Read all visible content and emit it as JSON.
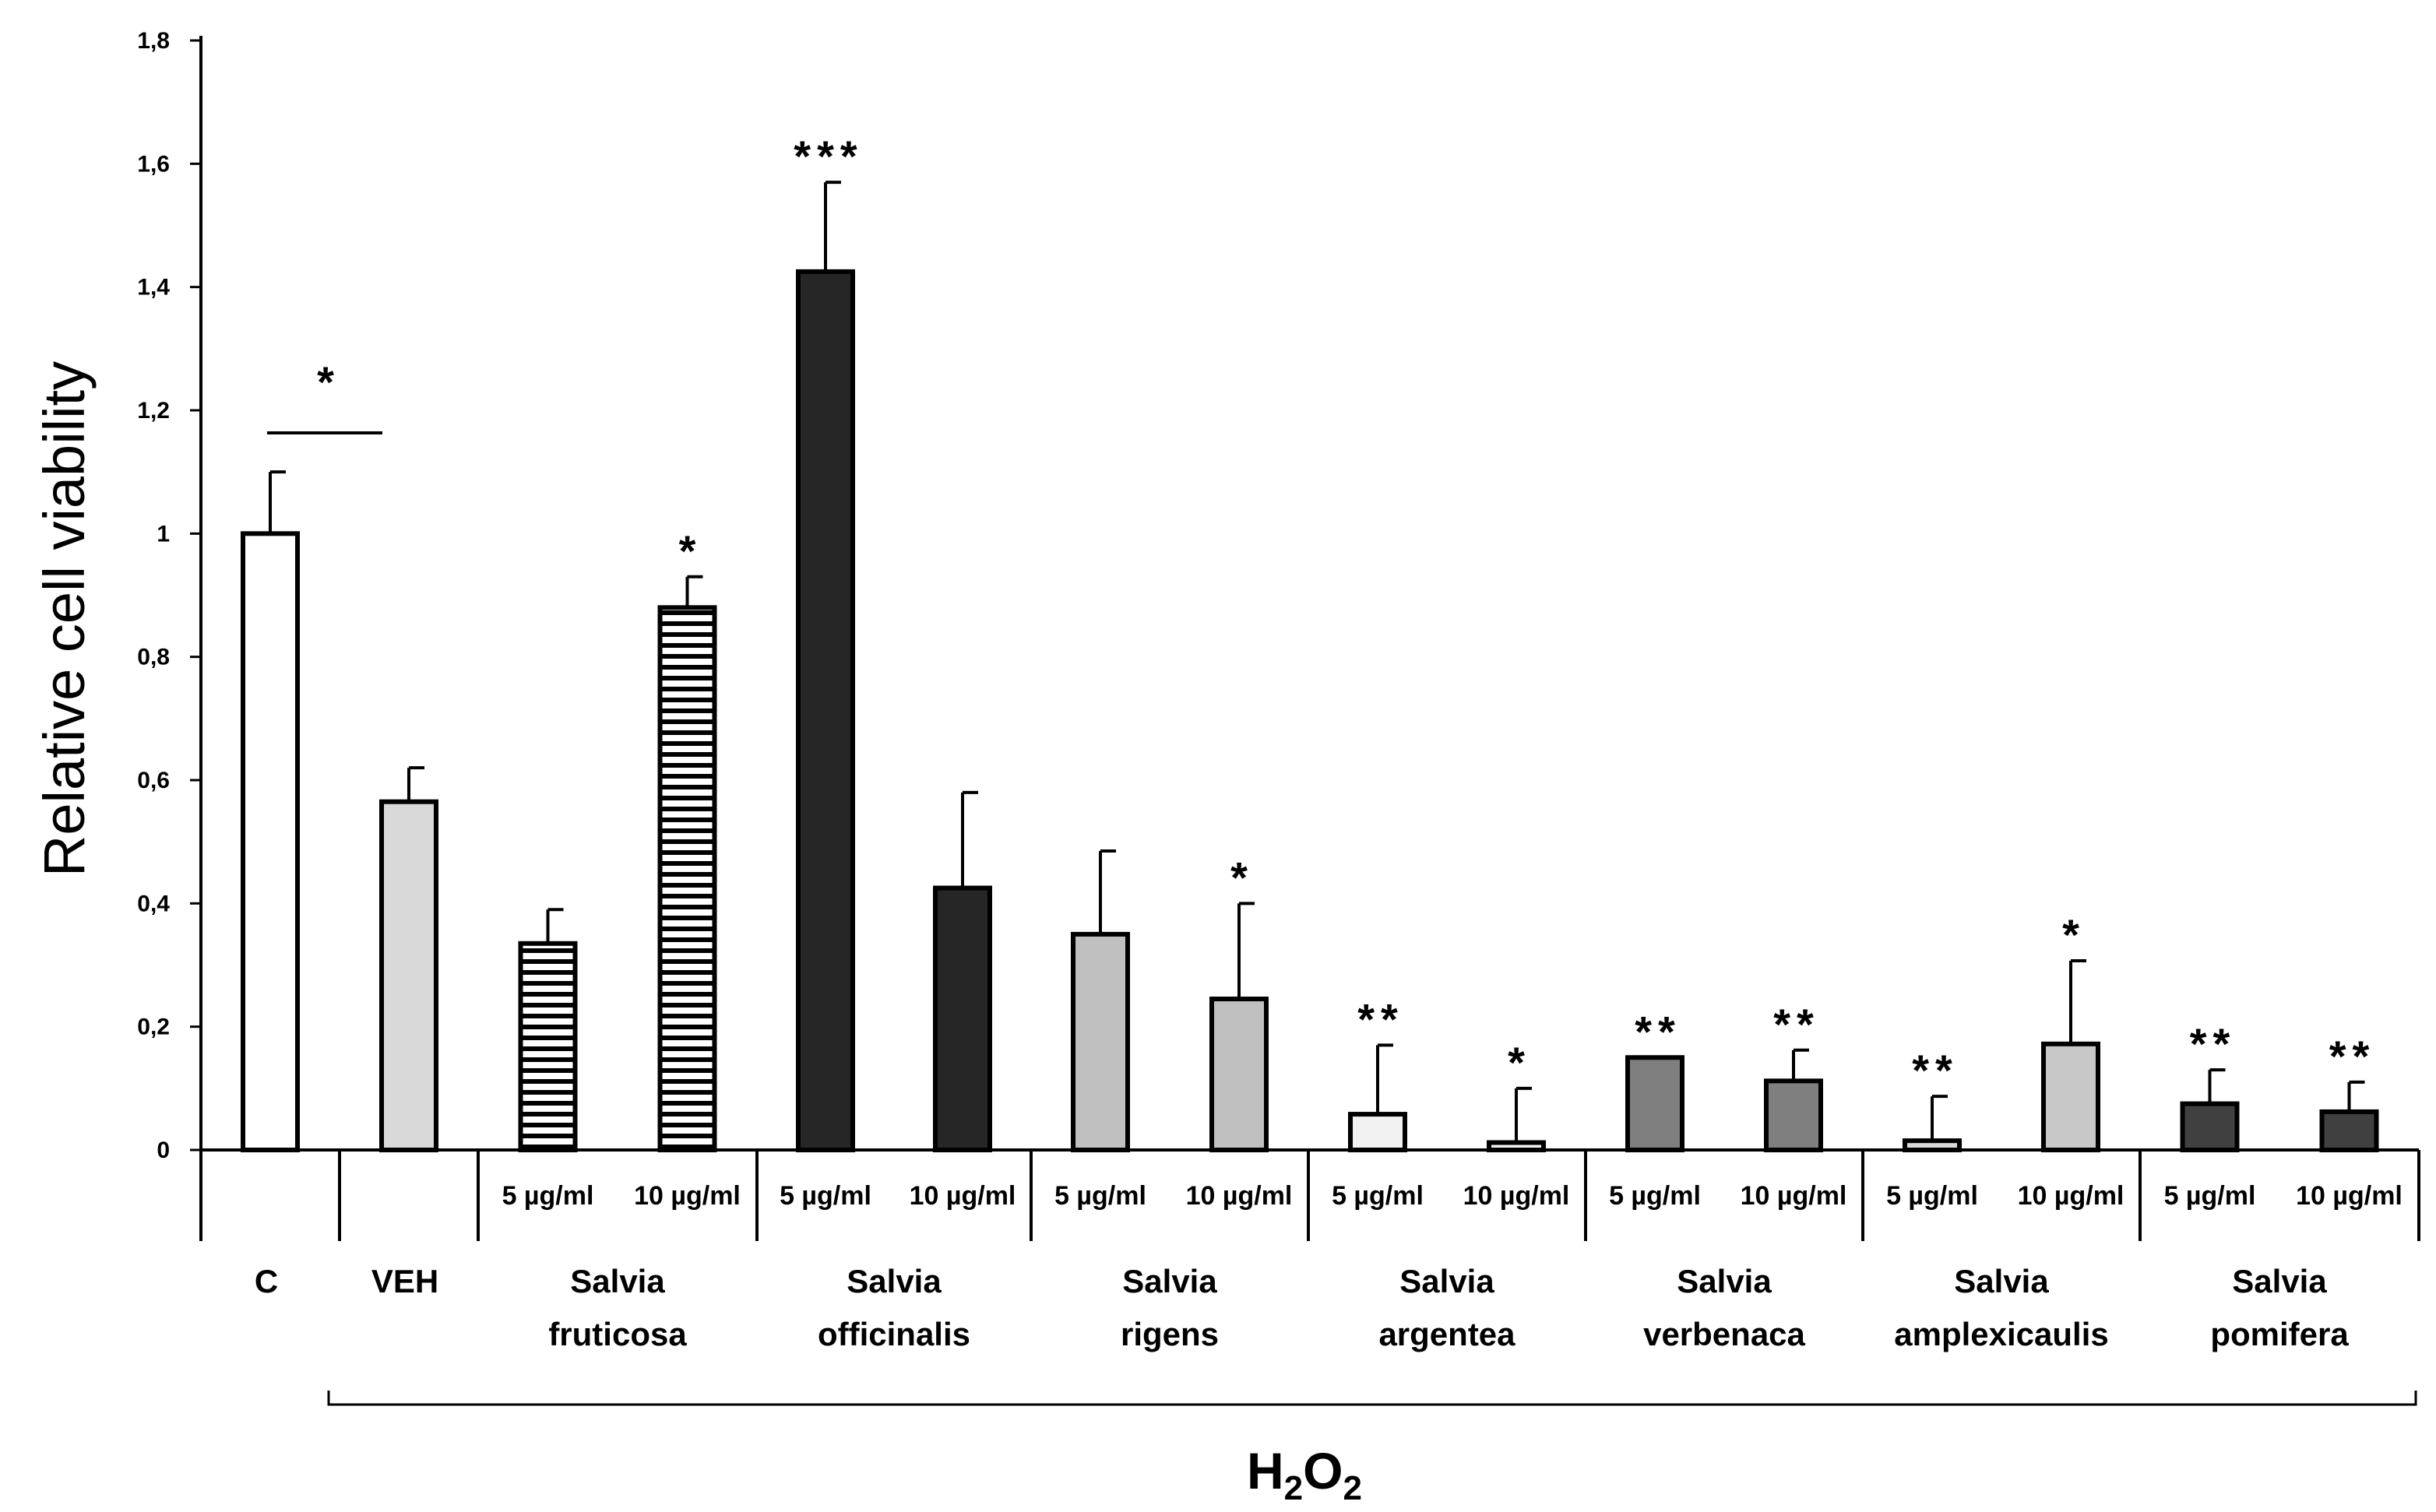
{
  "chart_data": {
    "type": "bar",
    "ylabel": "Relative cell viability",
    "ylim": [
      0,
      1.8
    ],
    "yticks": [
      "0",
      "0,2",
      "0,4",
      "0,6",
      "0,8",
      "1",
      "1,2",
      "1,4",
      "1,6",
      "1,8"
    ],
    "grid": false,
    "legend": "none",
    "groups": [
      {
        "label_line1": "C",
        "label_line2": ""
      },
      {
        "label_line1": "VEH",
        "label_line2": ""
      },
      {
        "label_line1": "Salvia",
        "label_line2": "fruticosa"
      },
      {
        "label_line1": "Salvia",
        "label_line2": "officinalis"
      },
      {
        "label_line1": "Salvia",
        "label_line2": "rigens"
      },
      {
        "label_line1": "Salvia",
        "label_line2": "argentea"
      },
      {
        "label_line1": "Salvia",
        "label_line2": "verbenaca"
      },
      {
        "label_line1": "Salvia",
        "label_line2": "amplexicaulis"
      },
      {
        "label_line1": "Salvia",
        "label_line2": "pomifera"
      }
    ],
    "bars": [
      {
        "group": 0,
        "dose": "",
        "value": 1.0,
        "error": 0.1,
        "sig": "",
        "fill": "#ffffff",
        "pattern": "none"
      },
      {
        "group": 1,
        "dose": "",
        "value": 0.565,
        "error": 0.055,
        "sig": "",
        "fill": "#d9d9d9",
        "pattern": "none"
      },
      {
        "group": 2,
        "dose": "5 µg/ml",
        "value": 0.335,
        "error": 0.055,
        "sig": "",
        "fill": "#ffffff",
        "pattern": "hstripes"
      },
      {
        "group": 2,
        "dose": "10 µg/ml",
        "value": 0.88,
        "error": 0.05,
        "sig": "*",
        "fill": "#ffffff",
        "pattern": "hstripes"
      },
      {
        "group": 3,
        "dose": "5 µg/ml",
        "value": 1.425,
        "error": 0.145,
        "sig": "***",
        "fill": "#262626",
        "pattern": "none"
      },
      {
        "group": 3,
        "dose": "10 µg/ml",
        "value": 0.425,
        "error": 0.155,
        "sig": "",
        "fill": "#262626",
        "pattern": "none"
      },
      {
        "group": 4,
        "dose": "5 µg/ml",
        "value": 0.35,
        "error": 0.135,
        "sig": "",
        "fill": "#c0c0c0",
        "pattern": "none"
      },
      {
        "group": 4,
        "dose": "10 µg/ml",
        "value": 0.245,
        "error": 0.155,
        "sig": "*",
        "fill": "#c0c0c0",
        "pattern": "none"
      },
      {
        "group": 5,
        "dose": "5 µg/ml",
        "value": 0.058,
        "error": 0.112,
        "sig": "**",
        "fill": "#f2f2f2",
        "pattern": "none"
      },
      {
        "group": 5,
        "dose": "10 µg/ml",
        "value": 0.012,
        "error": 0.088,
        "sig": "*",
        "fill": "#f2f2f2",
        "pattern": "none"
      },
      {
        "group": 6,
        "dose": "5 µg/ml",
        "value": 0.15,
        "error": 0.0,
        "sig": "**",
        "fill": "#7f7f7f",
        "pattern": "none"
      },
      {
        "group": 6,
        "dose": "10 µg/ml",
        "value": 0.112,
        "error": 0.05,
        "sig": "**",
        "fill": "#7f7f7f",
        "pattern": "none"
      },
      {
        "group": 7,
        "dose": "5 µg/ml",
        "value": 0.015,
        "error": 0.072,
        "sig": "**",
        "fill": "#d9d9d9",
        "pattern": "none"
      },
      {
        "group": 7,
        "dose": "10 µg/ml",
        "value": 0.172,
        "error": 0.135,
        "sig": "*",
        "fill": "#c8c8c8",
        "pattern": "none"
      },
      {
        "group": 8,
        "dose": "5 µg/ml",
        "value": 0.075,
        "error": 0.055,
        "sig": "**",
        "fill": "#404040",
        "pattern": "none"
      },
      {
        "group": 8,
        "dose": "10 µg/ml",
        "value": 0.062,
        "error": 0.048,
        "sig": "**",
        "fill": "#404040",
        "pattern": "none"
      }
    ],
    "comparison": {
      "from_bar": 0,
      "to_bar": 1,
      "sig": "*"
    },
    "bracket_label_main": "H",
    "bracket_label_sub1": "2",
    "bracket_label_mid": "O",
    "bracket_label_sub2": "2",
    "bracket_from_group": 1,
    "bracket_to_group": 8
  }
}
